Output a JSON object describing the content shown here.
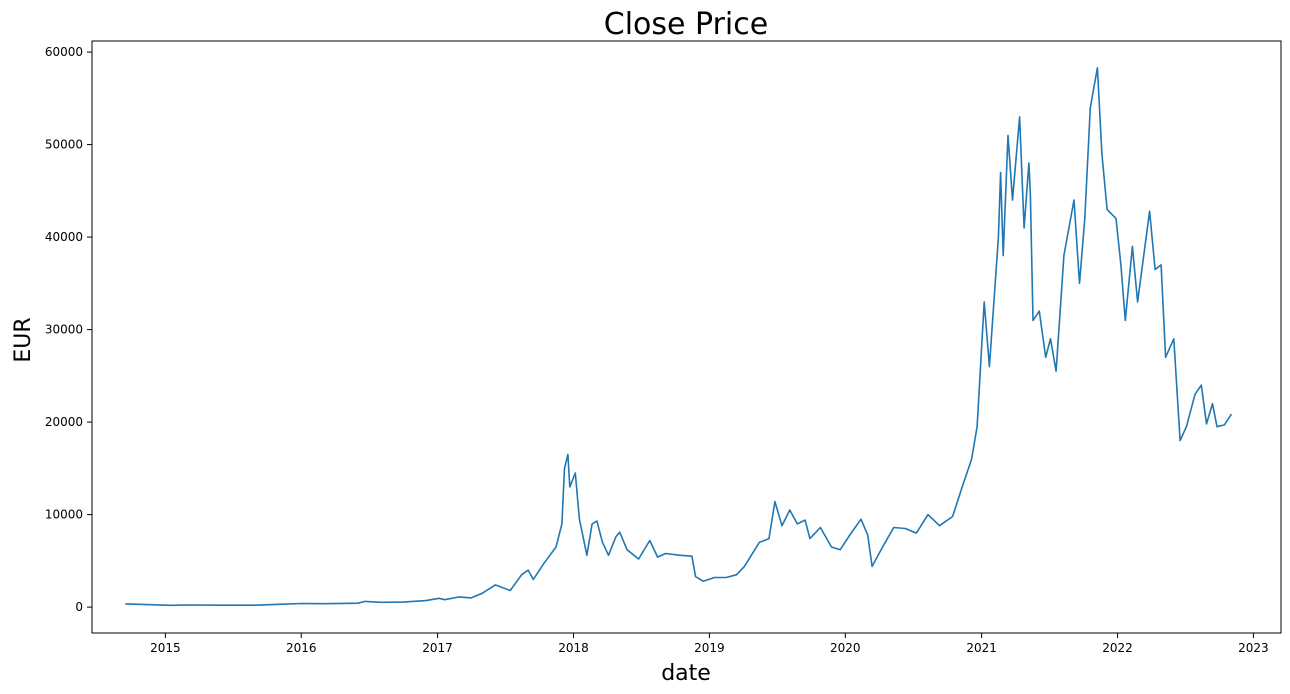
{
  "chart_data": {
    "type": "line",
    "title": "Close Price",
    "xlabel": "date",
    "ylabel": "EUR",
    "grid": false,
    "xlim": [
      "2014-06-18",
      "2023-03-16"
    ],
    "ylim": [
      -2800,
      61200
    ],
    "x_ticks": [
      "2015",
      "2016",
      "2017",
      "2018",
      "2019",
      "2020",
      "2021",
      "2022",
      "2023"
    ],
    "y_ticks": [
      0,
      10000,
      20000,
      30000,
      40000,
      50000,
      60000
    ],
    "series": [
      {
        "color": "#1f77b4",
        "points": [
          [
            "2014-09-17",
            350
          ],
          [
            "2014-11-01",
            290
          ],
          [
            "2015-01-15",
            200
          ],
          [
            "2015-03-01",
            230
          ],
          [
            "2015-06-01",
            210
          ],
          [
            "2015-09-01",
            210
          ],
          [
            "2015-11-01",
            300
          ],
          [
            "2016-01-01",
            390
          ],
          [
            "2016-03-01",
            370
          ],
          [
            "2016-06-01",
            420
          ],
          [
            "2016-06-20",
            620
          ],
          [
            "2016-08-01",
            520
          ],
          [
            "2016-10-01",
            540
          ],
          [
            "2016-12-01",
            700
          ],
          [
            "2017-01-05",
            950
          ],
          [
            "2017-01-20",
            800
          ],
          [
            "2017-03-01",
            1100
          ],
          [
            "2017-04-01",
            1000
          ],
          [
            "2017-05-01",
            1500
          ],
          [
            "2017-06-05",
            2400
          ],
          [
            "2017-07-15",
            1800
          ],
          [
            "2017-08-15",
            3500
          ],
          [
            "2017-09-01",
            4000
          ],
          [
            "2017-09-15",
            3000
          ],
          [
            "2017-10-15",
            4800
          ],
          [
            "2017-11-15",
            6500
          ],
          [
            "2017-12-01",
            9000
          ],
          [
            "2017-12-08",
            15000
          ],
          [
            "2017-12-17",
            16500
          ],
          [
            "2017-12-22",
            13000
          ],
          [
            "2018-01-06",
            14500
          ],
          [
            "2018-01-17",
            9500
          ],
          [
            "2018-02-06",
            5600
          ],
          [
            "2018-02-20",
            9000
          ],
          [
            "2018-03-05",
            9300
          ],
          [
            "2018-03-20",
            7000
          ],
          [
            "2018-04-05",
            5600
          ],
          [
            "2018-04-25",
            7600
          ],
          [
            "2018-05-05",
            8100
          ],
          [
            "2018-05-25",
            6200
          ],
          [
            "2018-06-25",
            5200
          ],
          [
            "2018-07-25",
            7200
          ],
          [
            "2018-08-15",
            5400
          ],
          [
            "2018-09-05",
            5800
          ],
          [
            "2018-10-15",
            5600
          ],
          [
            "2018-11-15",
            5500
          ],
          [
            "2018-11-25",
            3300
          ],
          [
            "2018-12-15",
            2800
          ],
          [
            "2019-01-15",
            3200
          ],
          [
            "2019-02-15",
            3200
          ],
          [
            "2019-03-15",
            3500
          ],
          [
            "2019-04-05",
            4400
          ],
          [
            "2019-05-15",
            7000
          ],
          [
            "2019-06-10",
            7400
          ],
          [
            "2019-06-26",
            11400
          ],
          [
            "2019-07-15",
            8800
          ],
          [
            "2019-08-05",
            10500
          ],
          [
            "2019-08-25",
            9000
          ],
          [
            "2019-09-15",
            9400
          ],
          [
            "2019-09-28",
            7400
          ],
          [
            "2019-10-26",
            8600
          ],
          [
            "2019-11-25",
            6500
          ],
          [
            "2019-12-18",
            6200
          ],
          [
            "2020-01-15",
            7900
          ],
          [
            "2020-02-12",
            9500
          ],
          [
            "2020-03-01",
            7800
          ],
          [
            "2020-03-13",
            4400
          ],
          [
            "2020-04-10",
            6500
          ],
          [
            "2020-05-10",
            8600
          ],
          [
            "2020-06-10",
            8500
          ],
          [
            "2020-07-10",
            8000
          ],
          [
            "2020-08-10",
            10000
          ],
          [
            "2020-09-10",
            8800
          ],
          [
            "2020-10-15",
            9800
          ],
          [
            "2020-11-10",
            13000
          ],
          [
            "2020-12-05",
            16000
          ],
          [
            "2020-12-20",
            19500
          ],
          [
            "2021-01-08",
            33000
          ],
          [
            "2021-01-22",
            26000
          ],
          [
            "2021-02-15",
            40000
          ],
          [
            "2021-02-21",
            47000
          ],
          [
            "2021-02-28",
            38000
          ],
          [
            "2021-03-13",
            51000
          ],
          [
            "2021-03-25",
            44000
          ],
          [
            "2021-04-13",
            53000
          ],
          [
            "2021-04-25",
            41000
          ],
          [
            "2021-05-08",
            48000
          ],
          [
            "2021-05-12",
            44500
          ],
          [
            "2021-05-19",
            31000
          ],
          [
            "2021-06-05",
            32000
          ],
          [
            "2021-06-22",
            27000
          ],
          [
            "2021-07-05",
            29000
          ],
          [
            "2021-07-20",
            25500
          ],
          [
            "2021-08-10",
            38000
          ],
          [
            "2021-09-06",
            44000
          ],
          [
            "2021-09-21",
            35000
          ],
          [
            "2021-10-05",
            42000
          ],
          [
            "2021-10-20",
            54000
          ],
          [
            "2021-11-08",
            58300
          ],
          [
            "2021-11-20",
            49000
          ],
          [
            "2021-12-04",
            43000
          ],
          [
            "2021-12-28",
            42000
          ],
          [
            "2022-01-10",
            37000
          ],
          [
            "2022-01-22",
            31000
          ],
          [
            "2022-02-10",
            39000
          ],
          [
            "2022-02-24",
            33000
          ],
          [
            "2022-03-28",
            42800
          ],
          [
            "2022-04-12",
            36500
          ],
          [
            "2022-04-28",
            37000
          ],
          [
            "2022-05-10",
            27000
          ],
          [
            "2022-06-01",
            29000
          ],
          [
            "2022-06-18",
            18000
          ],
          [
            "2022-07-05",
            19500
          ],
          [
            "2022-07-28",
            23000
          ],
          [
            "2022-08-14",
            24000
          ],
          [
            "2022-08-28",
            19800
          ],
          [
            "2022-09-13",
            22000
          ],
          [
            "2022-09-25",
            19500
          ],
          [
            "2022-10-15",
            19700
          ],
          [
            "2022-10-28",
            20500
          ],
          [
            "2022-11-02",
            20800
          ]
        ]
      }
    ]
  }
}
